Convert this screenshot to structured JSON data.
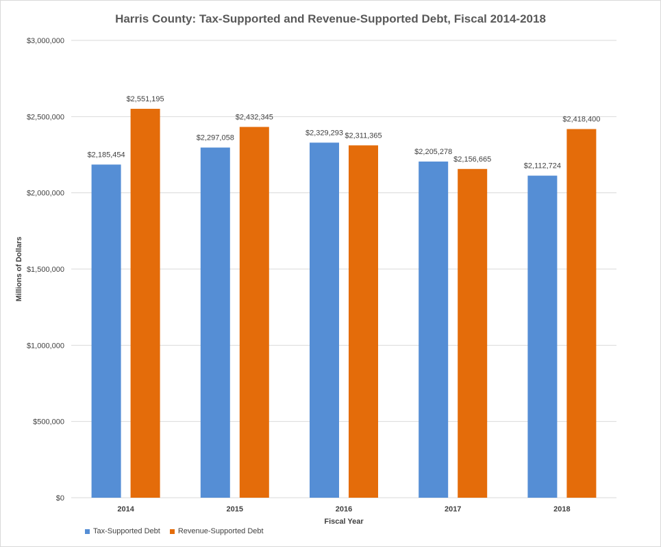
{
  "colors": {
    "tax": "#558ed5",
    "revenue": "#e46c0a",
    "grid": "#d9d9d9",
    "text": "#404040"
  },
  "chart_data": {
    "type": "bar",
    "title": "Harris County: Tax-Supported and Revenue-Supported Debt, Fiscal 2014-2018",
    "xlabel": "Fiscal Year",
    "ylabel": "Millions of Dollars",
    "categories": [
      "2014",
      "2015",
      "2016",
      "2017",
      "2018"
    ],
    "series": [
      {
        "name": "Tax-Supported Debt",
        "values": [
          2185454,
          2297058,
          2329293,
          2205278,
          2112724
        ],
        "labels": [
          "$2,185,454",
          "$2,297,058",
          "$2,329,293",
          "$2,205,278",
          "$2,112,724"
        ]
      },
      {
        "name": "Revenue-Supported Debt",
        "values": [
          2551195,
          2432345,
          2311365,
          2156665,
          2418400
        ],
        "labels": [
          "$2,551,195",
          "$2,432,345",
          "$2,311,365",
          "$2,156,665",
          "$2,418,400"
        ]
      }
    ],
    "ylim": [
      0,
      3000000
    ],
    "yticks": [
      {
        "value": 0,
        "label": "$0"
      },
      {
        "value": 500000,
        "label": "$500,000"
      },
      {
        "value": 1000000,
        "label": "$1,000,000"
      },
      {
        "value": 1500000,
        "label": "$1,500,000"
      },
      {
        "value": 2000000,
        "label": "$2,000,000"
      },
      {
        "value": 2500000,
        "label": "$2,500,000"
      },
      {
        "value": 3000000,
        "label": "$3,000,000"
      }
    ],
    "grid": true,
    "legend_position": "bottom-left"
  }
}
